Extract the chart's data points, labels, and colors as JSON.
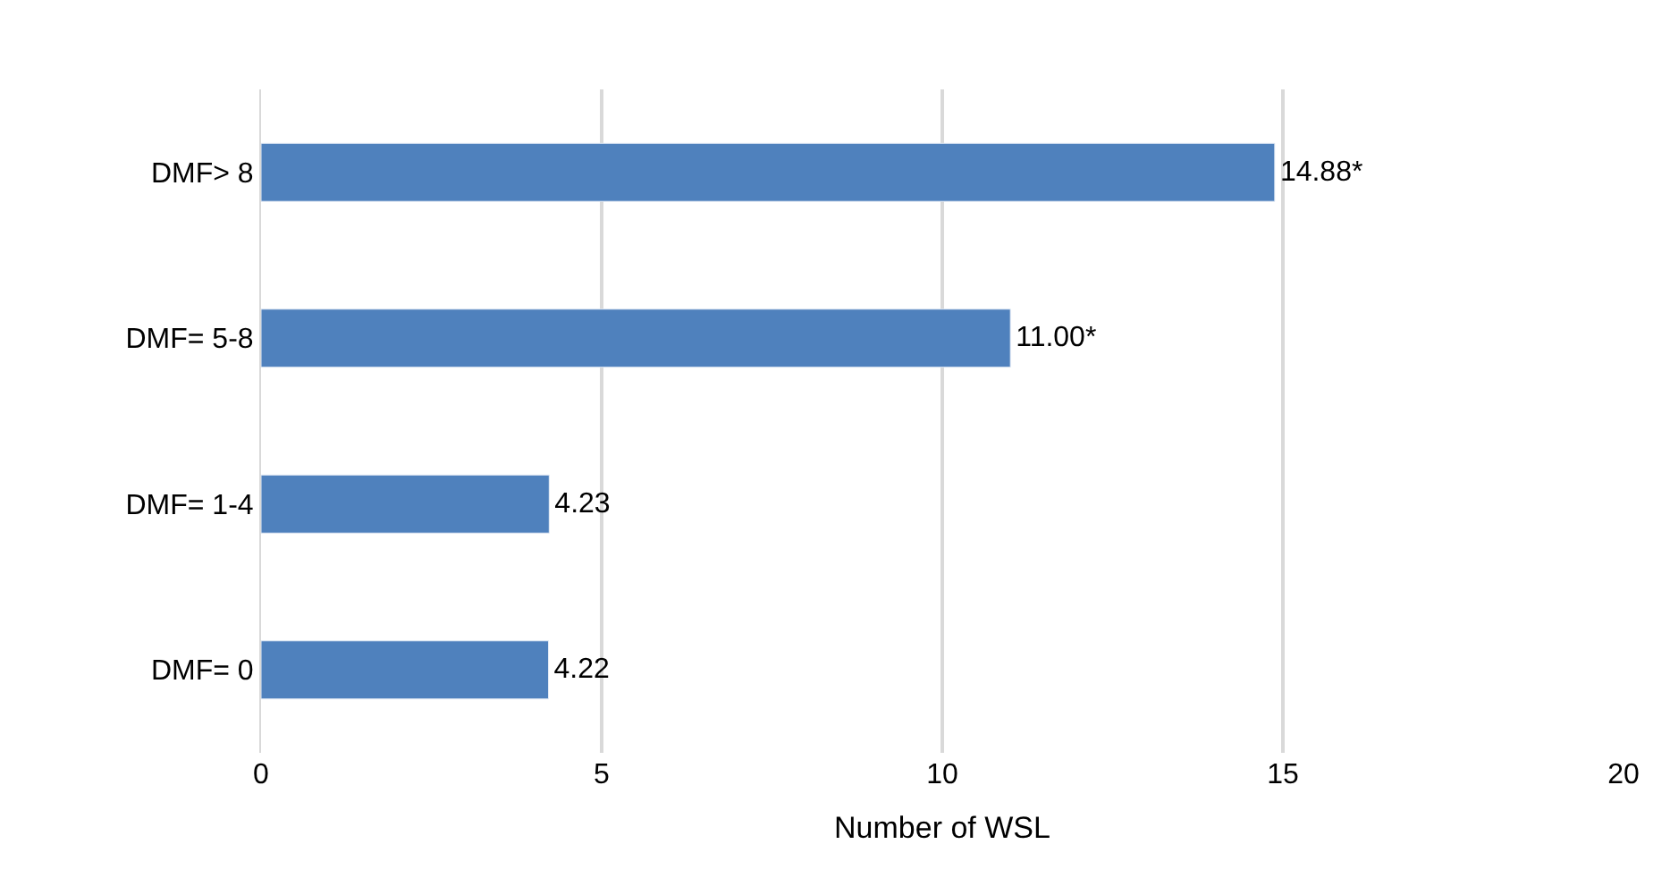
{
  "chart_data": {
    "type": "bar",
    "orientation": "horizontal",
    "xlabel": "Number of WSL",
    "categories": [
      "DMF> 8",
      "DMF= 5-8",
      "DMF= 1-4",
      "DMF= 0"
    ],
    "values": [
      14.88,
      11.0,
      4.23,
      4.22
    ],
    "value_labels": [
      "14.88*",
      "11.00*",
      "4.23",
      "4.22"
    ],
    "color": "#4f81bd",
    "xlim": [
      0,
      20
    ],
    "xticks": [
      0,
      5,
      10,
      15,
      20
    ],
    "grid": "x"
  }
}
